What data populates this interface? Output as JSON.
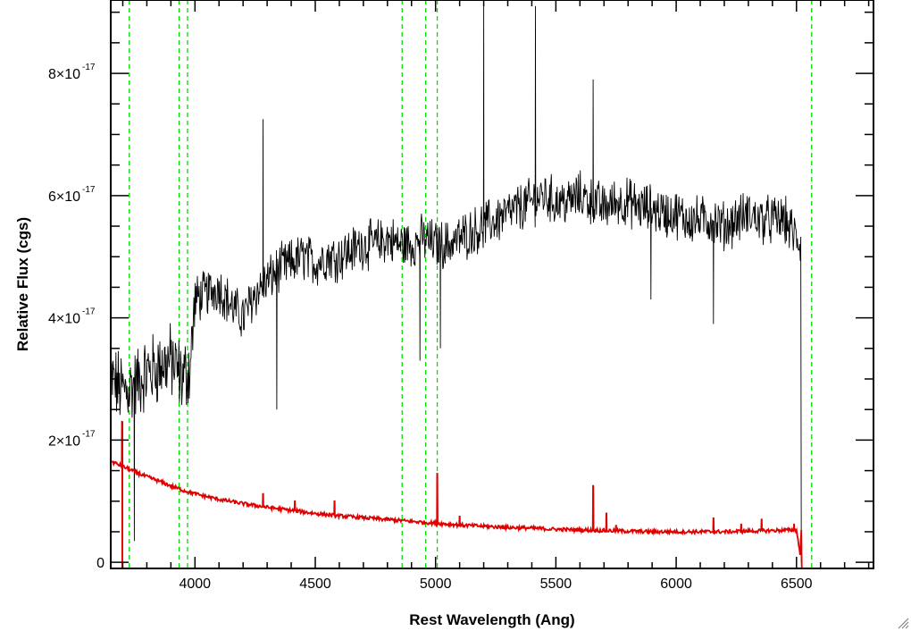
{
  "chart_data": {
    "type": "line",
    "title": "",
    "xlabel": "Rest Wavelength (Ang)",
    "ylabel": "Relative Flux (cgs)",
    "xlim": [
      3650,
      6820
    ],
    "ylim": [
      -1e-18,
      9.2e-17
    ],
    "x_ticks": [
      {
        "value": 4000,
        "label": "4000"
      },
      {
        "value": 4500,
        "label": "4500"
      },
      {
        "value": 5000,
        "label": "5000"
      },
      {
        "value": 5500,
        "label": "5500"
      },
      {
        "value": 6000,
        "label": "6000"
      },
      {
        "value": 6500,
        "label": "6500"
      }
    ],
    "y_ticks": [
      {
        "value": 0,
        "mantissa": "0",
        "exponent": ""
      },
      {
        "value": 2e-17,
        "mantissa": "2×10",
        "exponent": "-17"
      },
      {
        "value": 4e-17,
        "mantissa": "4×10",
        "exponent": "-17"
      },
      {
        "value": 6e-17,
        "mantissa": "6×10",
        "exponent": "-17"
      },
      {
        "value": 8e-17,
        "mantissa": "8×10",
        "exponent": "-17"
      }
    ],
    "grid": false,
    "legend": "none",
    "series": [
      {
        "color": "#000000",
        "style": "solid",
        "x": [
          3650,
          3700,
          3750,
          3800,
          3850,
          3900,
          3950,
          3980,
          4000,
          4050,
          4100,
          4150,
          4200,
          4250,
          4300,
          4350,
          4400,
          4450,
          4500,
          4550,
          4600,
          4650,
          4700,
          4750,
          4800,
          4850,
          4900,
          4950,
          5000,
          5050,
          5100,
          5150,
          5200,
          5250,
          5300,
          5350,
          5400,
          5450,
          5500,
          5550,
          5600,
          5650,
          5700,
          5750,
          5800,
          5850,
          5900,
          5950,
          6000,
          6050,
          6100,
          6150,
          6200,
          6250,
          6300,
          6350,
          6400,
          6450,
          6500,
          6520
        ],
        "y": [
          3e-17,
          2.8e-17,
          2.9e-17,
          3.1e-17,
          3.2e-17,
          3.3e-17,
          3e-17,
          3.2e-17,
          4.3e-17,
          4.4e-17,
          4.5e-17,
          4.2e-17,
          4e-17,
          4.4e-17,
          4.6e-17,
          4.8e-17,
          4.9e-17,
          5e-17,
          4.9e-17,
          5e-17,
          5e-17,
          5.1e-17,
          5.2e-17,
          5.2e-17,
          5.3e-17,
          5.2e-17,
          5.2e-17,
          5.3e-17,
          5.2e-17,
          5.2e-17,
          5.3e-17,
          5.4e-17,
          5.5e-17,
          5.6e-17,
          5.7e-17,
          5.8e-17,
          5.9e-17,
          6e-17,
          5.9e-17,
          5.9e-17,
          6e-17,
          5.9e-17,
          5.8e-17,
          5.9e-17,
          5.9e-17,
          5.8e-17,
          5.8e-17,
          5.7e-17,
          5.7e-17,
          5.6e-17,
          5.6e-17,
          5.6e-17,
          5.5e-17,
          5.6e-17,
          5.7e-17,
          5.6e-17,
          5.6e-17,
          5.6e-17,
          5.3e-17,
          5.2e-17
        ],
        "spikes": [
          {
            "x": 3748,
            "y": 3.5e-18
          },
          {
            "x": 4283,
            "y": 7.25e-17
          },
          {
            "x": 4340,
            "y": 2.5e-17
          },
          {
            "x": 4935,
            "y": 3.3e-17
          },
          {
            "x": 5020,
            "y": 3.5e-17
          },
          {
            "x": 5200,
            "y": 9.2e-17
          },
          {
            "x": 5415,
            "y": 9.1e-17
          },
          {
            "x": 5655,
            "y": 7.9e-17
          },
          {
            "x": 5895,
            "y": 4.3e-17
          },
          {
            "x": 6155,
            "y": 3.9e-17
          }
        ],
        "cutoff": {
          "x": 6520,
          "y": 0
        }
      },
      {
        "color": "#e00000",
        "style": "solid",
        "x": [
          3650,
          3700,
          3750,
          3800,
          3850,
          3900,
          3950,
          4000,
          4100,
          4200,
          4300,
          4400,
          4500,
          4600,
          4700,
          4800,
          4900,
          5000,
          5100,
          5200,
          5300,
          5400,
          5500,
          5600,
          5700,
          5800,
          5900,
          6000,
          6100,
          6200,
          6300,
          6400,
          6500,
          6520,
          6540,
          6820
        ],
        "y": [
          1.65e-17,
          1.57e-17,
          1.48e-17,
          1.4e-17,
          1.33e-17,
          1.25e-17,
          1.18e-17,
          1.12e-17,
          1.03e-17,
          9.6e-18,
          9e-18,
          8.5e-18,
          8e-18,
          7.6e-18,
          7.3e-18,
          7e-18,
          6.7e-18,
          6.4e-18,
          6.1e-18,
          5.9e-18,
          5.7e-18,
          5.6e-18,
          5.4e-18,
          5.3e-18,
          5.2e-18,
          5.1e-18,
          5e-18,
          5e-18,
          5e-18,
          5e-18,
          5.1e-18,
          5.2e-18,
          5.3e-18,
          0.0,
          0.0,
          0.0
        ],
        "spikes": [
          {
            "x": 3697,
            "y": 2.3e-17,
            "down": -1e-18
          },
          {
            "x": 4283,
            "y": 1.12e-17
          },
          {
            "x": 4415,
            "y": 1e-17
          },
          {
            "x": 4580,
            "y": 1e-17
          },
          {
            "x": 5007,
            "y": 1.45e-17
          },
          {
            "x": 5100,
            "y": 7.5e-18
          },
          {
            "x": 5280,
            "y": 6e-18
          },
          {
            "x": 5655,
            "y": 1.25e-17
          },
          {
            "x": 5710,
            "y": 8e-18
          },
          {
            "x": 5750,
            "y": 6e-18
          },
          {
            "x": 6155,
            "y": 7.2e-18
          },
          {
            "x": 6270,
            "y": 6.2e-18
          },
          {
            "x": 6355,
            "y": 7e-18
          },
          {
            "x": 6490,
            "y": 6.2e-18
          }
        ]
      }
    ],
    "vlines": {
      "color": "#00dd00",
      "style": "dashed",
      "x": [
        3727,
        3934,
        3969,
        4861,
        4959,
        5007,
        6563
      ]
    }
  }
}
